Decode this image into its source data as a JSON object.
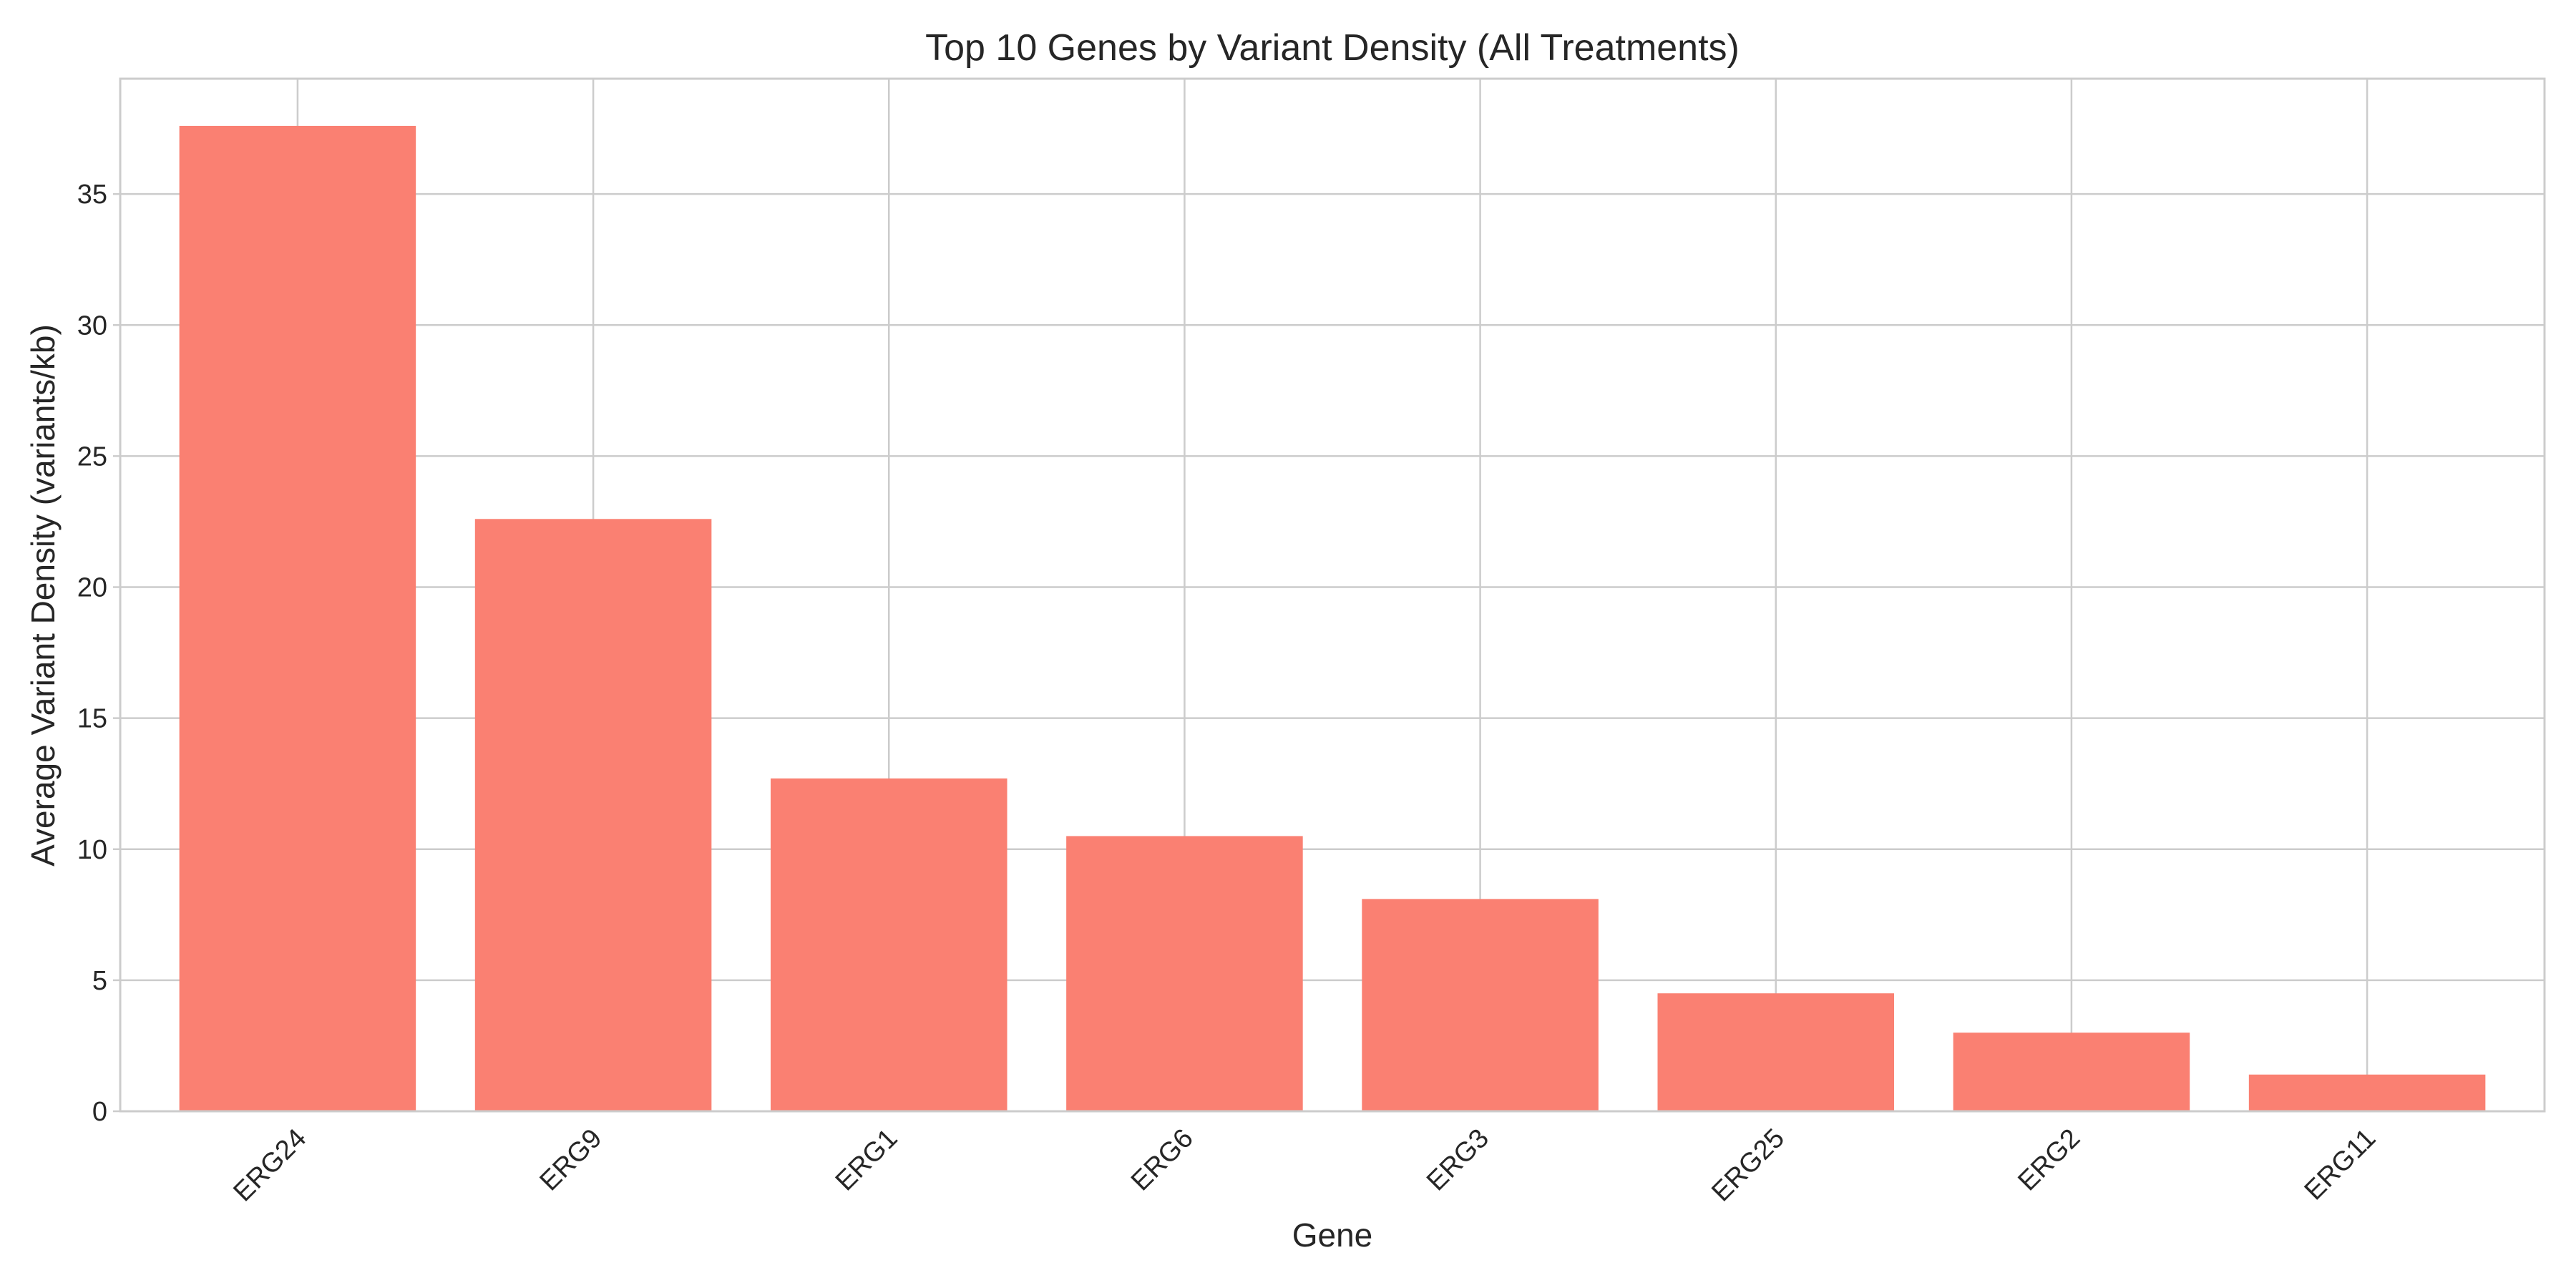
{
  "chart_data": {
    "type": "bar",
    "title": "Top 10 Genes by Variant Density (All Treatments)",
    "xlabel": "Gene",
    "ylabel": "Average Variant Density (variants/kb)",
    "categories": [
      "ERG24",
      "ERG9",
      "ERG1",
      "ERG6",
      "ERG3",
      "ERG25",
      "ERG2",
      "ERG11"
    ],
    "values": [
      37.6,
      22.6,
      12.7,
      10.5,
      8.1,
      4.5,
      3.0,
      1.4
    ],
    "ylim": [
      0,
      39.4
    ],
    "yticks": [
      0,
      5,
      10,
      15,
      20,
      25,
      30,
      35
    ],
    "grid": true,
    "colors": {
      "bar": "#fa8072"
    }
  }
}
